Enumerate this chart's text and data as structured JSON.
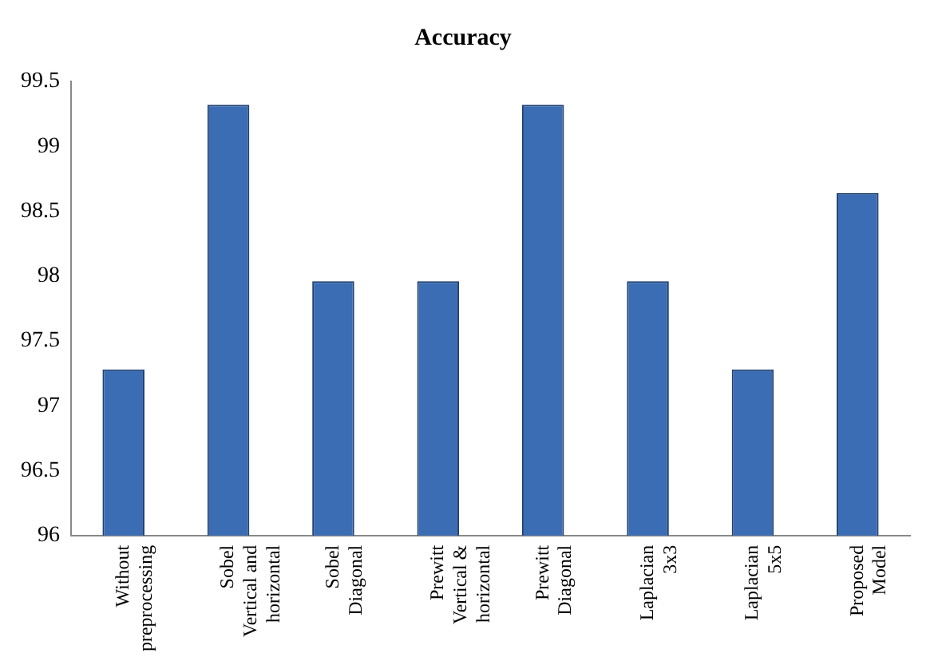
{
  "chart_data": {
    "type": "bar",
    "title": "Accuracy",
    "categories": [
      "Without preprocessing",
      "Sobel Vertical and horizontal",
      "Sobel Diagonal",
      "Prewitt Vertical & horizontal",
      "Prewitt Diagonal",
      "Laplacian 3x3",
      "Laplacian 5x5",
      "Proposed Model"
    ],
    "values": [
      97.28,
      99.32,
      97.96,
      97.96,
      99.32,
      97.96,
      97.28,
      98.64
    ],
    "color": "#3b6db4",
    "ylim": [
      96,
      99.5
    ],
    "yticks": [
      96,
      96.5,
      97,
      97.5,
      98,
      98.5,
      99,
      99.5
    ],
    "grid": false,
    "legend": false
  }
}
